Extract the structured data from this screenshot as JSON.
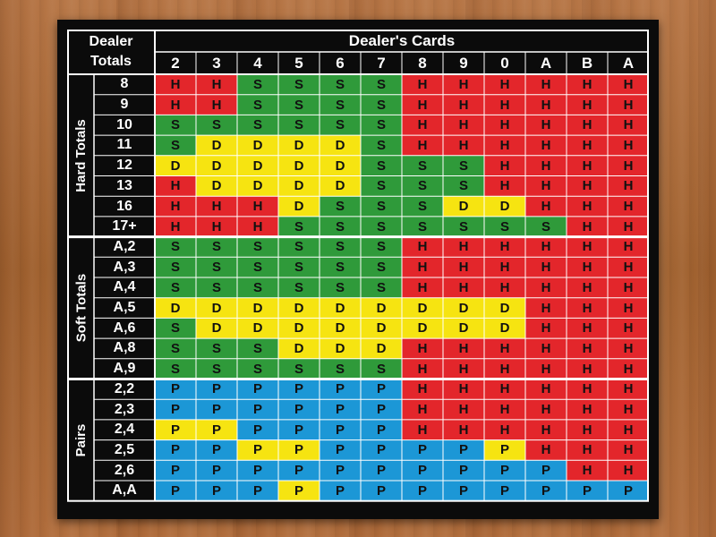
{
  "corner_label": "Dealer\nTotals",
  "title": "Dealer's Cards",
  "dealer_cards": [
    "2",
    "3",
    "4",
    "5",
    "6",
    "7",
    "8",
    "9",
    "0",
    "A",
    "B",
    "A"
  ],
  "colors": {
    "H": "#e3262b",
    "S": "#2f9a3a",
    "D": "#f6e411",
    "P": "#1c97d6",
    "board": "#0b0b0b",
    "line": "#ffffff"
  },
  "sections": [
    {
      "label": "Hard Totals",
      "rows": [
        {
          "label": "8",
          "cells": [
            "H",
            "H",
            "S",
            "S",
            "S",
            "S",
            "H",
            "H",
            "H",
            "H",
            "H",
            "H"
          ]
        },
        {
          "label": "9",
          "cells": [
            "H",
            "H",
            "S",
            "S",
            "S",
            "S",
            "H",
            "H",
            "H",
            "H",
            "H",
            "H"
          ]
        },
        {
          "label": "10",
          "cells": [
            "S",
            "S",
            "S",
            "S",
            "S",
            "S",
            "H",
            "H",
            "H",
            "H",
            "H",
            "H"
          ]
        },
        {
          "label": "11",
          "cells": [
            "S",
            "D",
            "D",
            "D",
            "D",
            "S",
            "H",
            "H",
            "H",
            "H",
            "H",
            "H"
          ]
        },
        {
          "label": "12",
          "cells": [
            "D",
            "D",
            "D",
            "D",
            "D",
            "S",
            "S",
            "S",
            "H",
            "H",
            "H",
            "H"
          ]
        },
        {
          "label": "13",
          "cells": [
            "H",
            "D",
            "D",
            "D",
            "D",
            "S",
            "S",
            "S",
            "H",
            "H",
            "H",
            "H"
          ]
        },
        {
          "label": "16",
          "cells": [
            "H",
            "H",
            "H",
            "D",
            "S",
            "S",
            "S",
            "D",
            "D",
            "H",
            "H",
            "H"
          ]
        },
        {
          "label": "17+",
          "cells": [
            "H",
            "H",
            "H",
            "S",
            "S",
            "S",
            "S",
            "S",
            "S",
            "S",
            "H",
            "H"
          ]
        }
      ]
    },
    {
      "label": "Soft Totals",
      "rows": [
        {
          "label": "A,2",
          "cells": [
            "S",
            "S",
            "S",
            "S",
            "S",
            "S",
            "H",
            "H",
            "H",
            "H",
            "H",
            "H"
          ]
        },
        {
          "label": "A,3",
          "cells": [
            "S",
            "S",
            "S",
            "S",
            "S",
            "S",
            "H",
            "H",
            "H",
            "H",
            "H",
            "H"
          ]
        },
        {
          "label": "A,4",
          "cells": [
            "S",
            "S",
            "S",
            "S",
            "S",
            "S",
            "H",
            "H",
            "H",
            "H",
            "H",
            "H"
          ]
        },
        {
          "label": "A,5",
          "cells": [
            "D",
            "D",
            "D",
            "D",
            "D",
            "D",
            "D",
            "D",
            "D",
            "H",
            "H",
            "H"
          ]
        },
        {
          "label": "A,6",
          "cells": [
            "S",
            "D",
            "D",
            "D",
            "D",
            "D",
            "D",
            "D",
            "D",
            "H",
            "H",
            "H"
          ]
        },
        {
          "label": "A,8",
          "cells": [
            "S",
            "S",
            "S",
            "D",
            "D",
            "D",
            "H",
            "H",
            "H",
            "H",
            "H",
            "H"
          ]
        },
        {
          "label": "A,9",
          "cells": [
            "S",
            "S",
            "S",
            "S",
            "S",
            "S",
            "H",
            "H",
            "H",
            "H",
            "H",
            "H"
          ]
        }
      ]
    },
    {
      "label": "Pairs",
      "rows": [
        {
          "label": "2,2",
          "cells": [
            "P",
            "P",
            "P",
            "P",
            "P",
            "P",
            "H",
            "H",
            "H",
            "H",
            "H",
            "H"
          ]
        },
        {
          "label": "2,3",
          "cells": [
            "P",
            "P",
            "P",
            "P",
            "P",
            "P",
            "H",
            "H",
            "H",
            "H",
            "H",
            "H"
          ]
        },
        {
          "label": "2,4",
          "cells": [
            "P",
            "P",
            "P",
            "P",
            "P",
            "P",
            "H",
            "H",
            "H",
            "H",
            "H",
            "H"
          ]
        },
        {
          "label": "2,5",
          "cells": [
            "P",
            "P",
            "P",
            "P",
            "P",
            "P",
            "P",
            "P",
            "P",
            "H",
            "H",
            "H"
          ]
        },
        {
          "label": "2,6",
          "cells": [
            "P",
            "P",
            "P",
            "P",
            "P",
            "P",
            "P",
            "P",
            "P",
            "P",
            "H",
            "H"
          ]
        },
        {
          "label": "A,A",
          "cells": [
            "P",
            "P",
            "P",
            "P",
            "P",
            "P",
            "P",
            "P",
            "P",
            "P",
            "P",
            "P"
          ]
        }
      ]
    }
  ],
  "yellow_pair_cells": [
    {
      "row": "2,4",
      "cols": [
        0,
        1
      ]
    },
    {
      "row": "2,5",
      "cols": [
        2,
        3,
        8
      ]
    },
    {
      "row": "A,A",
      "cols": [
        3
      ]
    }
  ]
}
